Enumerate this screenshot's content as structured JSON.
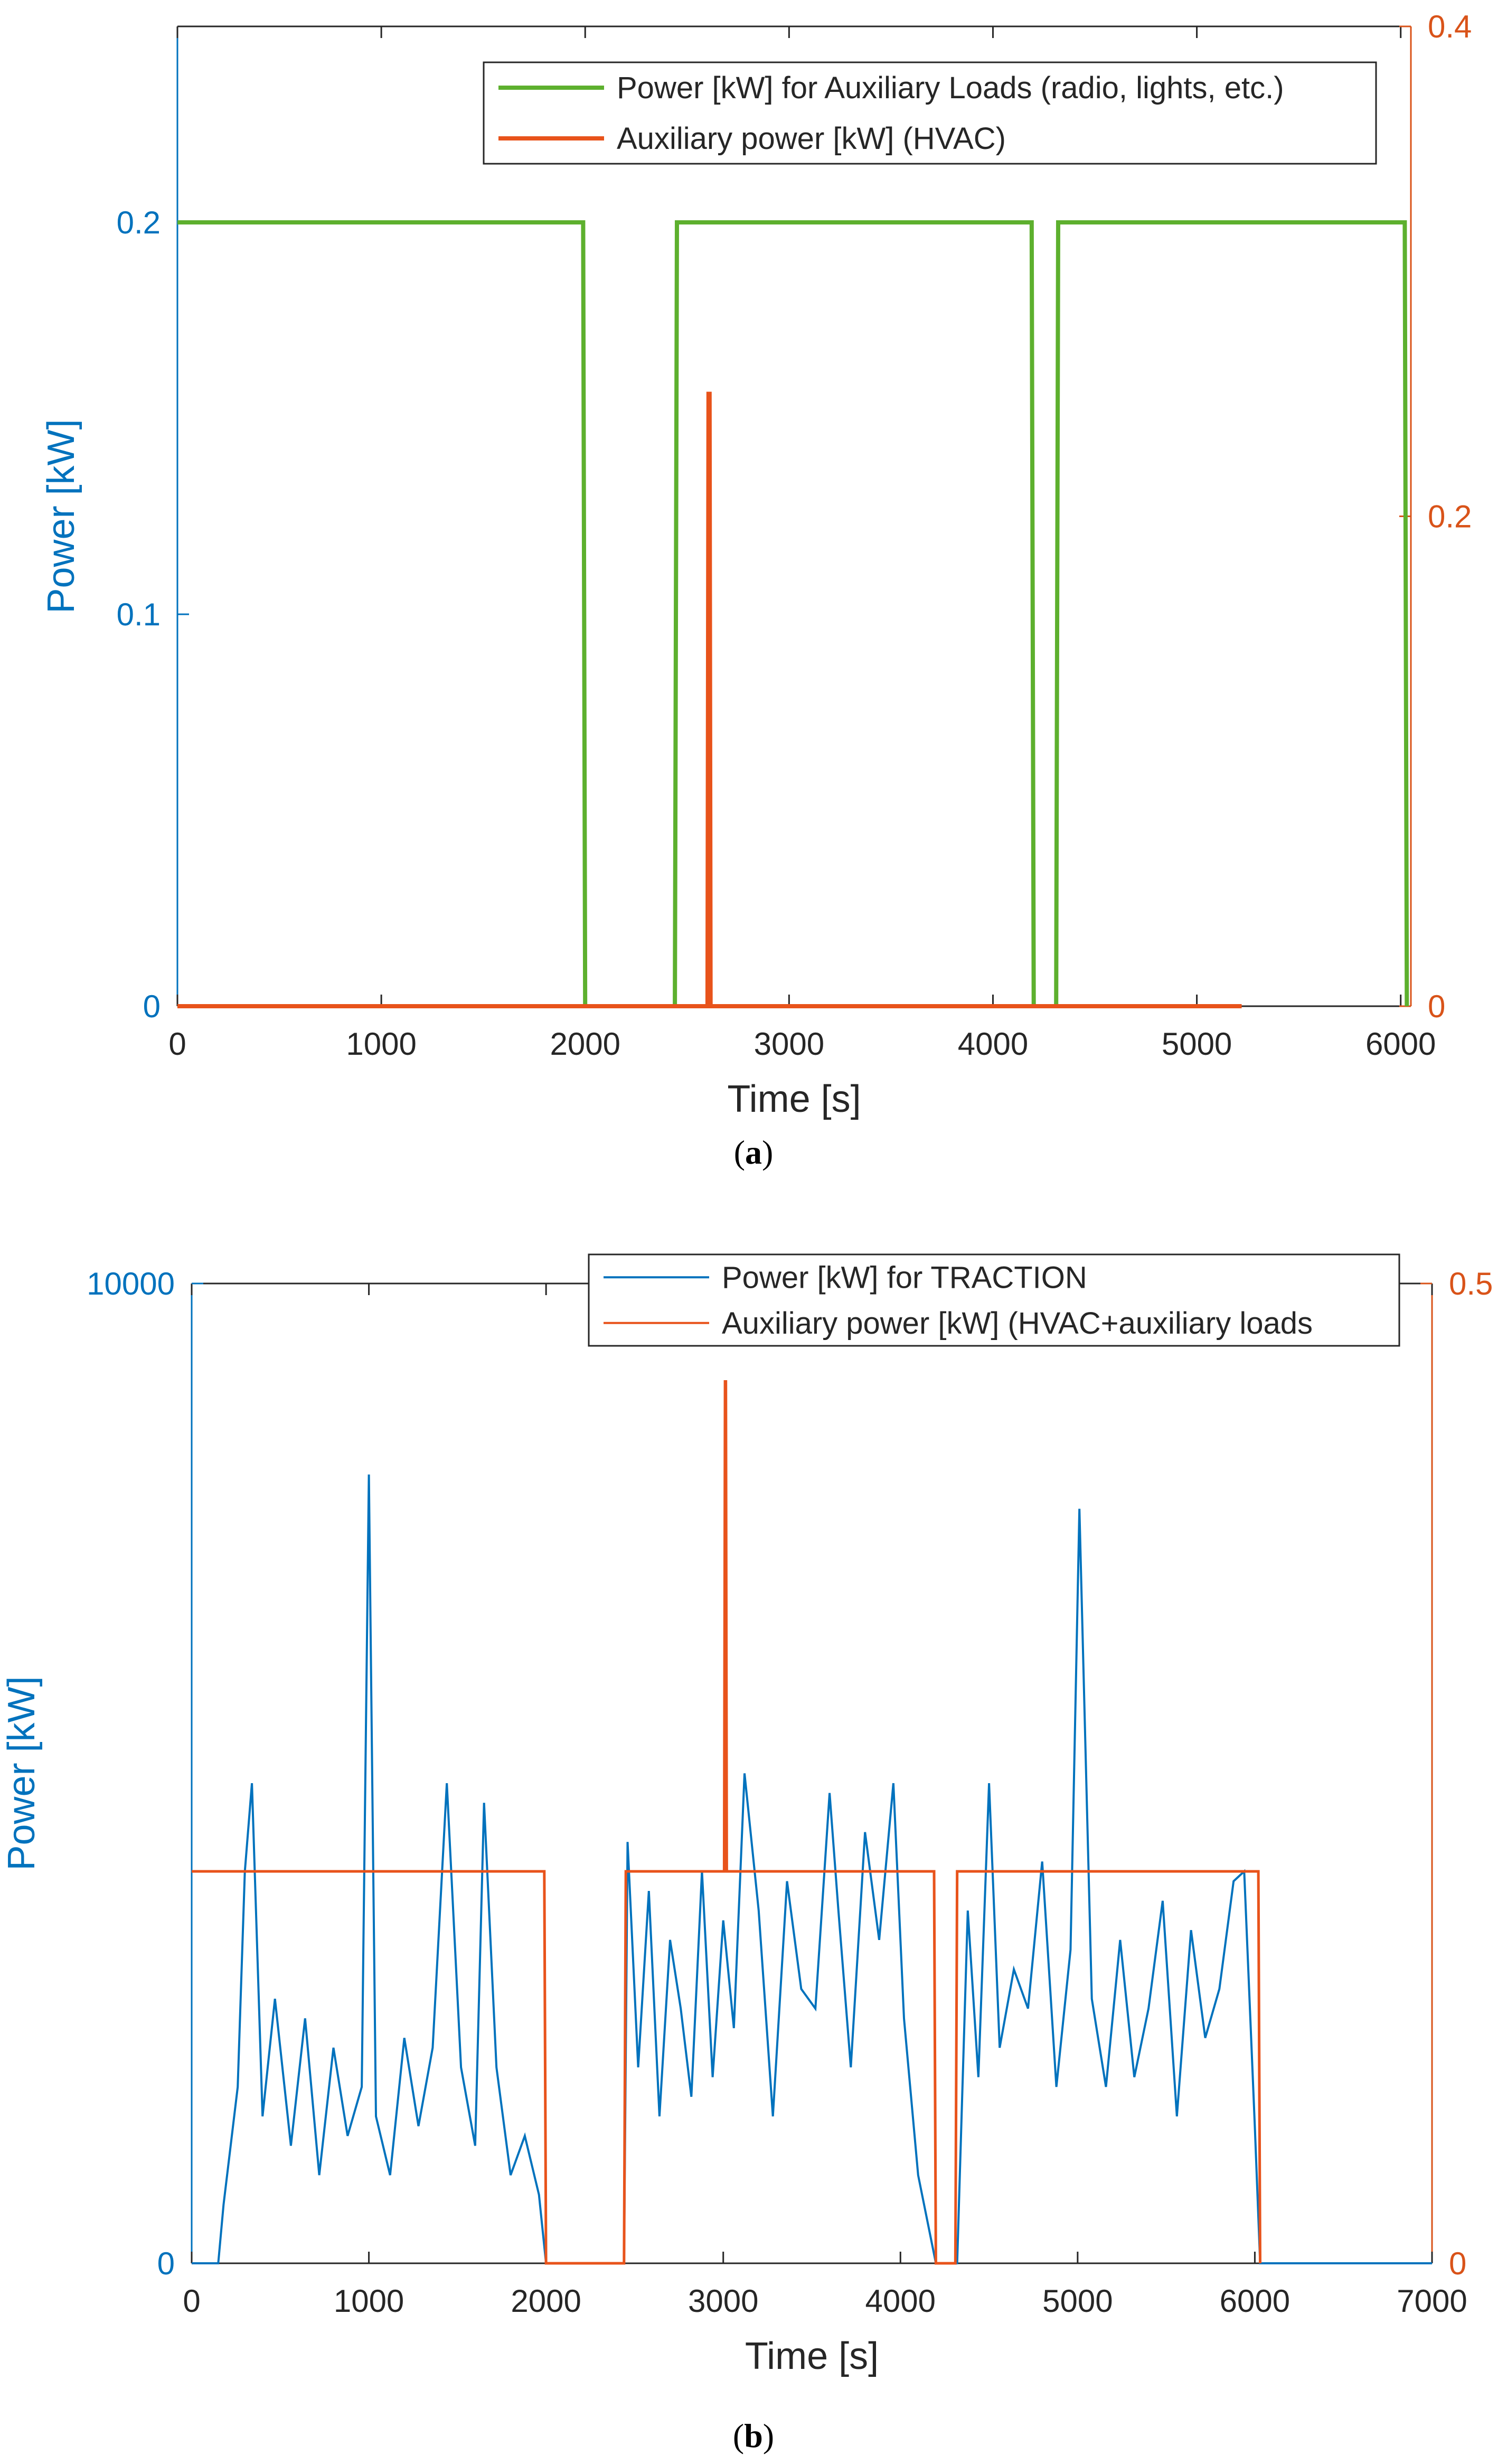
{
  "colors": {
    "left_axis": "#0072BD",
    "right_axis": "#D95319",
    "green_line": "#5DB02E",
    "traction_line": "#0072BD",
    "hvac_line": "#E8531B",
    "axis_black": "#262626"
  },
  "chart_data": [
    {
      "id": "a",
      "type": "line",
      "caption": "a",
      "xlabel": "Time [s]",
      "ylabel_left": "Power [kW]",
      "ylabel_right": "",
      "xlim": [
        0,
        6050
      ],
      "xticks": [
        "0",
        "1000",
        "2000",
        "3000",
        "4000",
        "5000",
        "6000"
      ],
      "xtick_values": [
        0,
        1000,
        2000,
        3000,
        4000,
        5000,
        6000
      ],
      "ylim_left": [
        0,
        0.25
      ],
      "yticks_left": [
        "0",
        "0.1",
        "0.2"
      ],
      "ytick_values_left": [
        0,
        0.1,
        0.2
      ],
      "ylim_right": [
        0,
        0.4
      ],
      "yticks_right": [
        "0",
        "0.2",
        "0.4"
      ],
      "ytick_values_right": [
        0,
        0.2,
        0.4
      ],
      "legend": [
        "Power [kW] for Auxiliary Loads (radio, lights, etc.)",
        "Auxiliary power [kW] (HVAC)"
      ],
      "legend_position": "top-right",
      "series": [
        {
          "name": "Power [kW] for Auxiliary Loads (radio, lights, etc.)",
          "axis": "left",
          "x": [
            0,
            1990,
            2000,
            2440,
            2450,
            4190,
            4200,
            4310,
            4320,
            6020,
            6030
          ],
          "values": [
            0.2,
            0.2,
            0,
            0,
            0.2,
            0.2,
            0,
            0,
            0.2,
            0.2,
            0
          ]
        },
        {
          "name": "Auxiliary power [kW] (HVAC)",
          "axis": "right",
          "x": [
            0,
            2600,
            2605,
            2610,
            2615,
            5220
          ],
          "values": [
            0,
            0,
            0.25,
            0.25,
            0,
            0
          ]
        }
      ]
    },
    {
      "id": "b",
      "type": "line",
      "caption": "b",
      "xlabel": "Time [s]",
      "ylabel_left": "Power [kW]",
      "ylabel_right": "",
      "xlim": [
        0,
        7000
      ],
      "xticks": [
        "0",
        "1000",
        "2000",
        "3000",
        "4000",
        "5000",
        "6000",
        "7000"
      ],
      "xtick_values": [
        0,
        1000,
        2000,
        3000,
        4000,
        5000,
        6000,
        7000
      ],
      "ylim_left": [
        0,
        10000
      ],
      "yticks_left": [
        "0",
        "10000"
      ],
      "ytick_values_left": [
        0,
        10000
      ],
      "ylim_right": [
        0,
        0.5
      ],
      "yticks_right": [
        "0",
        "0.5"
      ],
      "ytick_values_right": [
        0,
        0.5
      ],
      "legend": [
        "Power [kW] for TRACTION",
        "Auxiliary power [kW] (HVAC+auxiliary loads"
      ],
      "legend_position": "top-right",
      "series": [
        {
          "name": "Power [kW] for TRACTION",
          "axis": "left",
          "x": [
            0,
            150,
            180,
            260,
            300,
            340,
            400,
            470,
            560,
            640,
            720,
            800,
            880,
            960,
            1000,
            1040,
            1120,
            1200,
            1280,
            1360,
            1440,
            1520,
            1600,
            1650,
            1720,
            1800,
            1880,
            1960,
            2000,
            2440,
            2460,
            2520,
            2580,
            2640,
            2700,
            2760,
            2820,
            2880,
            2940,
            3000,
            3060,
            3120,
            3200,
            3280,
            3360,
            3440,
            3520,
            3600,
            3650,
            3720,
            3800,
            3880,
            3960,
            4020,
            4100,
            4200,
            4320,
            4380,
            4440,
            4500,
            4560,
            4640,
            4720,
            4800,
            4880,
            4960,
            5010,
            5080,
            5160,
            5240,
            5320,
            5400,
            5480,
            5560,
            5640,
            5720,
            5800,
            5880,
            5940,
            6000,
            6030,
            7000
          ],
          "values": [
            0,
            0,
            600,
            1800,
            4000,
            4900,
            1500,
            2700,
            1200,
            2500,
            900,
            2200,
            1300,
            1800,
            8050,
            1500,
            900,
            2300,
            1400,
            2200,
            4900,
            2000,
            1200,
            4700,
            2000,
            900,
            1300,
            700,
            0,
            0,
            4300,
            2000,
            3800,
            1500,
            3300,
            2600,
            1700,
            4000,
            1900,
            3500,
            2400,
            5000,
            3600,
            1500,
            3900,
            2800,
            2600,
            4800,
            3600,
            2000,
            4400,
            3300,
            4900,
            2500,
            900,
            0,
            0,
            3600,
            1900,
            4900,
            2200,
            3000,
            2600,
            4100,
            1800,
            3200,
            7700,
            2700,
            1800,
            3300,
            1900,
            2600,
            3700,
            1500,
            3400,
            2300,
            2800,
            3900,
            4000,
            1400,
            0,
            0
          ]
        },
        {
          "name": "Auxiliary power [kW] (HVAC+auxiliary loads",
          "axis": "right",
          "x": [
            0,
            1990,
            2000,
            2440,
            2450,
            3005,
            3010,
            3015,
            3020,
            4190,
            4200,
            4310,
            4320,
            6020,
            6030
          ],
          "values": [
            0.2,
            0.2,
            0,
            0,
            0.2,
            0.2,
            0.45,
            0.45,
            0.2,
            0.2,
            0,
            0,
            0.2,
            0.2,
            0
          ]
        }
      ]
    }
  ]
}
